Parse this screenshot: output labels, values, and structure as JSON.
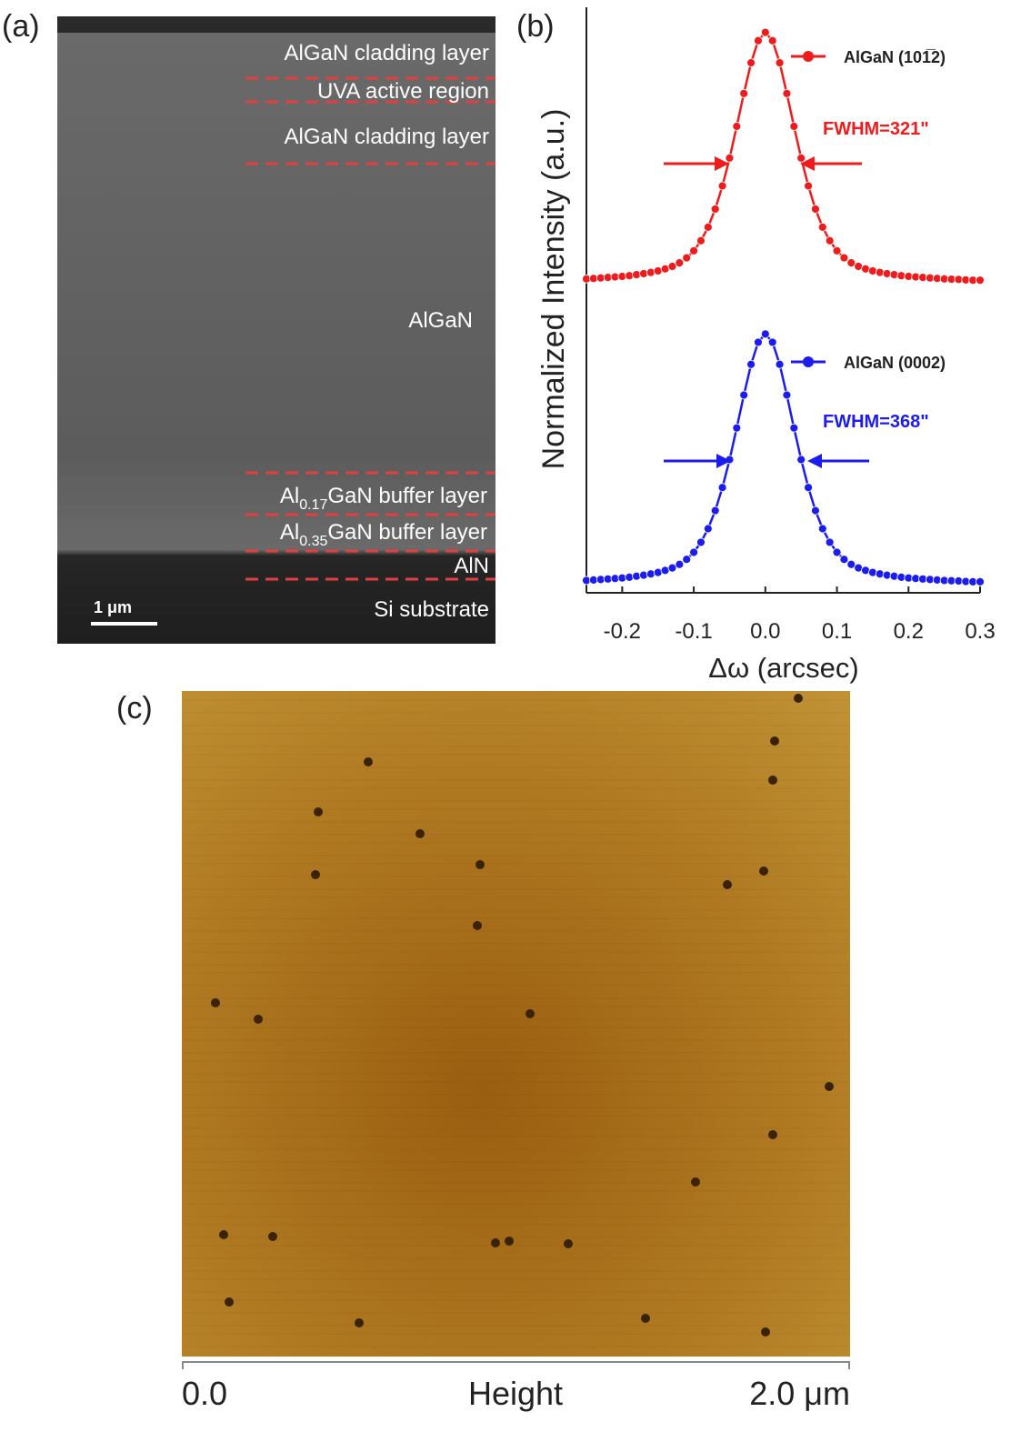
{
  "panel_labels": [
    "(a)",
    "(b)",
    "(c)"
  ],
  "panel_a": {
    "layers": [
      {
        "text": "AlGaN cladding layer"
      },
      {
        "text": "UVA active region"
      },
      {
        "text": "AlGaN cladding layer"
      },
      {
        "text": "AlGaN"
      },
      {
        "prefix": "Al",
        "sub": "0.17",
        "suffix": "GaN buffer layer"
      },
      {
        "prefix": "Al",
        "sub": "0.35",
        "suffix": "GaN buffer layer"
      },
      {
        "text": "AlN"
      },
      {
        "text": "Si substrate"
      }
    ],
    "scale_bar": "1 μm"
  },
  "chart_data": {
    "type": "line",
    "y_label": "Normalized Intensity (a.u.)",
    "x_label": "Δω (arcsec)",
    "xlim": [
      -0.25,
      0.3
    ],
    "xticks": [
      -0.2,
      -0.1,
      {
        "value": 0,
        "label": "0.0"
      },
      0.1,
      0.2,
      0.3
    ],
    "ylim": [
      0,
      2.33
    ],
    "x": [
      -0.25,
      -0.24,
      -0.23,
      -0.22,
      -0.21,
      -0.2,
      -0.19,
      -0.18,
      -0.17,
      -0.16,
      -0.15,
      -0.14,
      -0.13,
      -0.12,
      -0.11,
      -0.1,
      -0.09,
      -0.08,
      -0.07,
      -0.06,
      -0.05,
      -0.04,
      -0.03,
      -0.02,
      -0.01,
      0,
      0.01,
      0.02,
      0.03,
      0.04,
      0.05,
      0.06,
      0.07,
      0.08,
      0.09,
      0.1,
      0.11,
      0.12,
      0.13,
      0.14,
      0.15,
      0.16,
      0.17,
      0.18,
      0.19,
      0.2,
      0.21,
      0.22,
      0.23,
      0.24,
      0.25,
      0.26,
      0.27,
      0.28,
      0.29,
      0.3
    ],
    "series": [
      {
        "name": "AlGaN (101̅2)",
        "color": "#ee1c1c",
        "fwhm": "FWHM=321\"",
        "values": [
          1.249,
          1.251,
          1.253,
          1.255,
          1.257,
          1.259,
          1.262,
          1.266,
          1.27,
          1.275,
          1.281,
          1.289,
          1.299,
          1.313,
          1.333,
          1.361,
          1.401,
          1.455,
          1.527,
          1.619,
          1.73,
          1.856,
          1.987,
          2.109,
          2.197,
          2.23,
          2.197,
          2.109,
          1.987,
          1.856,
          1.73,
          1.619,
          1.527,
          1.455,
          1.401,
          1.361,
          1.333,
          1.313,
          1.299,
          1.289,
          1.281,
          1.275,
          1.27,
          1.266,
          1.262,
          1.259,
          1.257,
          1.255,
          1.253,
          1.251,
          1.249,
          1.248,
          1.247,
          1.245,
          1.244,
          1.244
        ]
      },
      {
        "name": "AlGaN (0002)",
        "color": "#1c1cee",
        "fwhm": "FWHM=368\"",
        "values": [
          0.049,
          0.051,
          0.053,
          0.055,
          0.057,
          0.059,
          0.062,
          0.066,
          0.07,
          0.075,
          0.081,
          0.089,
          0.099,
          0.113,
          0.133,
          0.161,
          0.201,
          0.255,
          0.327,
          0.419,
          0.53,
          0.656,
          0.787,
          0.909,
          0.997,
          1.03,
          0.997,
          0.909,
          0.787,
          0.656,
          0.53,
          0.419,
          0.327,
          0.255,
          0.201,
          0.161,
          0.133,
          0.113,
          0.099,
          0.089,
          0.081,
          0.075,
          0.07,
          0.066,
          0.062,
          0.059,
          0.057,
          0.055,
          0.053,
          0.051,
          0.049,
          0.048,
          0.047,
          0.045,
          0.044,
          0.044
        ]
      }
    ]
  },
  "panel_c": {
    "left": "0.0",
    "center": "Height",
    "right": "2.0 μm"
  }
}
